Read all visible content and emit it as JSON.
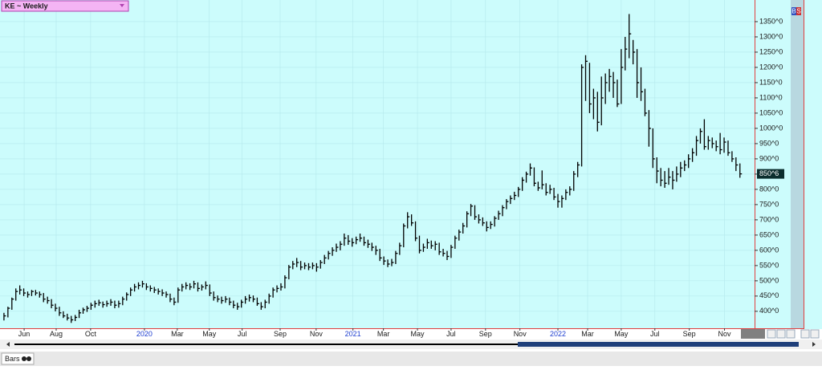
{
  "header": {
    "symbol_menu": "KE ~ Weekly",
    "trade_buttons": [
      "B",
      "S"
    ]
  },
  "footer": {
    "tab": "Bars"
  },
  "chart_data": {
    "type": "hlc",
    "color": "#000000",
    "grid": true,
    "ylim": [
      347,
      1421
    ],
    "yticks": [
      {
        "value": 400,
        "label": "400^0"
      },
      {
        "value": 450,
        "label": "450^0"
      },
      {
        "value": 500,
        "label": "500^0"
      },
      {
        "value": 550,
        "label": "550^0"
      },
      {
        "value": 600,
        "label": "600^0"
      },
      {
        "value": 650,
        "label": "650^0"
      },
      {
        "value": 700,
        "label": "700^0"
      },
      {
        "value": 750,
        "label": "750^0"
      },
      {
        "value": 800,
        "label": "800^0"
      },
      {
        "value": 850,
        "label": "850^0"
      },
      {
        "value": 900,
        "label": "900^0"
      },
      {
        "value": 950,
        "label": "950^0"
      },
      {
        "value": 1000,
        "label": "1000^0"
      },
      {
        "value": 1050,
        "label": "1050^0"
      },
      {
        "value": 1100,
        "label": "1100^0"
      },
      {
        "value": 1150,
        "label": "1150^0"
      },
      {
        "value": 1200,
        "label": "1200^0"
      },
      {
        "value": 1250,
        "label": "1250^0"
      },
      {
        "value": 1300,
        "label": "1300^0"
      },
      {
        "value": 1350,
        "label": "1350^0"
      }
    ],
    "xlim": [
      -1,
      189.7
    ],
    "xticks": [
      {
        "value": 5.1,
        "label": "Jun"
      },
      {
        "value": 13.2,
        "label": "Aug"
      },
      {
        "value": 21.9,
        "label": "Oct"
      },
      {
        "value": 35.5,
        "label": "2020"
      },
      {
        "value": 43.8,
        "label": "Mar"
      },
      {
        "value": 51.9,
        "label": "May"
      },
      {
        "value": 60.2,
        "label": "Jul"
      },
      {
        "value": 69.8,
        "label": "Sep"
      },
      {
        "value": 78.9,
        "label": "Nov"
      },
      {
        "value": 88.2,
        "label": "2021"
      },
      {
        "value": 95.9,
        "label": "Mar"
      },
      {
        "value": 104.5,
        "label": "May"
      },
      {
        "value": 113,
        "label": "Jul"
      },
      {
        "value": 121.7,
        "label": "Sep"
      },
      {
        "value": 130.4,
        "label": "Nov"
      },
      {
        "value": 140,
        "label": "2022"
      },
      {
        "value": 147.5,
        "label": "Mar"
      },
      {
        "value": 156,
        "label": "May"
      },
      {
        "value": 164.5,
        "label": "Jul"
      },
      {
        "value": 173.2,
        "label": "Sep"
      },
      {
        "value": 182.1,
        "label": "Nov"
      }
    ],
    "last_price": {
      "value": 850.75,
      "label": "850^6"
    },
    "high": [
      395,
      415,
      445,
      475,
      485,
      475,
      465,
      470,
      470,
      465,
      460,
      448,
      440,
      425,
      415,
      400,
      392,
      385,
      388,
      405,
      412,
      418,
      428,
      435,
      438,
      432,
      435,
      440,
      435,
      435,
      448,
      462,
      478,
      490,
      495,
      500,
      492,
      485,
      480,
      475,
      472,
      465,
      458,
      445,
      478,
      490,
      495,
      492,
      500,
      495,
      488,
      498,
      488,
      465,
      452,
      448,
      450,
      445,
      435,
      428,
      438,
      450,
      455,
      452,
      445,
      430,
      438,
      458,
      478,
      485,
      492,
      518,
      552,
      565,
      575,
      565,
      560,
      558,
      560,
      558,
      568,
      585,
      598,
      610,
      622,
      630,
      655,
      650,
      640,
      645,
      655,
      645,
      635,
      625,
      615,
      605,
      580,
      570,
      572,
      598,
      625,
      688,
      725,
      718,
      695,
      648,
      622,
      638,
      632,
      630,
      625,
      605,
      598,
      618,
      648,
      668,
      690,
      728,
      752,
      748,
      718,
      708,
      695,
      695,
      712,
      730,
      748,
      768,
      780,
      792,
      808,
      840,
      858,
      885,
      872,
      825,
      862,
      820,
      815,
      805,
      785,
      780,
      800,
      810,
      860,
      890,
      1210,
      1240,
      1215,
      1130,
      1120,
      1170,
      1180,
      1195,
      1185,
      1160,
      1260,
      1300,
      1375,
      1290,
      1260,
      1200,
      1130,
      1060,
      1000,
      905,
      870,
      860,
      870,
      860,
      875,
      890,
      895,
      915,
      935,
      975,
      1000,
      1030,
      975,
      970,
      960,
      985,
      970,
      960,
      925,
      905,
      885
    ],
    "low": [
      370,
      380,
      405,
      435,
      455,
      450,
      445,
      450,
      452,
      445,
      430,
      425,
      410,
      400,
      385,
      378,
      370,
      362,
      368,
      378,
      392,
      398,
      405,
      412,
      418,
      412,
      415,
      418,
      410,
      412,
      420,
      435,
      450,
      465,
      472,
      478,
      470,
      465,
      460,
      455,
      450,
      445,
      430,
      420,
      428,
      465,
      472,
      470,
      475,
      465,
      468,
      472,
      450,
      435,
      430,
      425,
      428,
      420,
      410,
      405,
      412,
      425,
      432,
      430,
      418,
      405,
      410,
      425,
      445,
      462,
      468,
      475,
      505,
      538,
      545,
      535,
      538,
      535,
      538,
      530,
      540,
      555,
      570,
      582,
      595,
      600,
      615,
      618,
      612,
      620,
      628,
      615,
      608,
      598,
      585,
      565,
      552,
      545,
      548,
      555,
      585,
      610,
      672,
      680,
      630,
      590,
      595,
      605,
      605,
      600,
      585,
      580,
      568,
      575,
      605,
      632,
      655,
      675,
      712,
      700,
      688,
      680,
      662,
      670,
      678,
      700,
      712,
      735,
      752,
      765,
      775,
      795,
      822,
      845,
      810,
      795,
      800,
      780,
      785,
      765,
      740,
      740,
      765,
      780,
      795,
      840,
      875,
      1090,
      1050,
      1030,
      990,
      1010,
      1080,
      1120,
      1100,
      1070,
      1080,
      1190,
      1230,
      1210,
      1100,
      1090,
      1040,
      940,
      870,
      820,
      810,
      805,
      815,
      800,
      825,
      840,
      860,
      870,
      890,
      910,
      950,
      930,
      930,
      935,
      925,
      915,
      920,
      910,
      890,
      860,
      838
    ],
    "close": [
      385,
      410,
      440,
      465,
      470,
      460,
      455,
      465,
      460,
      455,
      440,
      435,
      420,
      410,
      395,
      385,
      378,
      372,
      380,
      395,
      405,
      410,
      420,
      425,
      428,
      422,
      425,
      430,
      420,
      425,
      440,
      455,
      470,
      480,
      485,
      490,
      480,
      475,
      470,
      465,
      460,
      455,
      440,
      430,
      470,
      480,
      485,
      480,
      490,
      475,
      480,
      485,
      460,
      445,
      440,
      435,
      440,
      430,
      420,
      415,
      430,
      440,
      445,
      440,
      425,
      415,
      430,
      450,
      470,
      475,
      480,
      510,
      545,
      555,
      560,
      545,
      550,
      545,
      550,
      545,
      560,
      575,
      590,
      600,
      610,
      620,
      640,
      630,
      625,
      635,
      640,
      625,
      620,
      610,
      600,
      575,
      565,
      555,
      560,
      590,
      615,
      680,
      710,
      690,
      640,
      600,
      610,
      625,
      615,
      620,
      595,
      590,
      580,
      610,
      640,
      660,
      680,
      720,
      745,
      710,
      700,
      690,
      675,
      685,
      705,
      720,
      740,
      760,
      770,
      780,
      800,
      830,
      850,
      870,
      820,
      805,
      815,
      790,
      800,
      775,
      760,
      770,
      790,
      800,
      850,
      880,
      1200,
      1220,
      1080,
      1100,
      1020,
      1100,
      1150,
      1170,
      1150,
      1080,
      1200,
      1260,
      1310,
      1250,
      1150,
      1120,
      1050,
      1000,
      900,
      860,
      830,
      820,
      840,
      830,
      850,
      870,
      880,
      900,
      920,
      960,
      990,
      940,
      960,
      950,
      940,
      930,
      955,
      920,
      900,
      880,
      850.75
    ]
  }
}
